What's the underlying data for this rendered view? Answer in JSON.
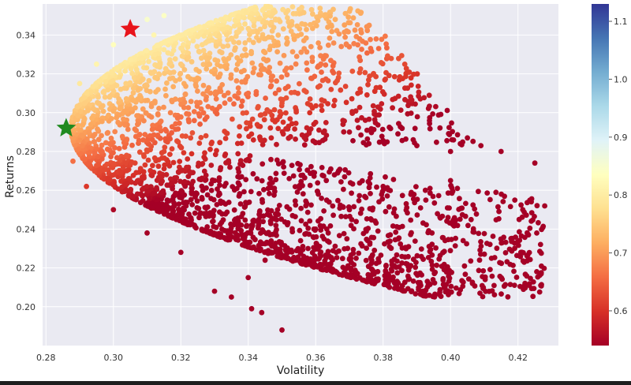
{
  "chart_data": {
    "type": "scatter",
    "title": "",
    "xlabel": "Volatility",
    "ylabel": "Returns",
    "xlim": [
      0.279,
      0.432
    ],
    "ylim": [
      0.18,
      0.356
    ],
    "x_ticks": [
      0.28,
      0.3,
      0.32,
      0.34,
      0.36,
      0.38,
      0.4,
      0.42
    ],
    "x_tick_labels": [
      "0.28",
      "0.30",
      "0.32",
      "0.34",
      "0.36",
      "0.38",
      "0.40",
      "0.42"
    ],
    "y_ticks": [
      0.2,
      0.22,
      0.24,
      0.26,
      0.28,
      0.3,
      0.32,
      0.34
    ],
    "y_tick_labels": [
      "0.20",
      "0.22",
      "0.24",
      "0.26",
      "0.28",
      "0.30",
      "0.32",
      "0.34"
    ],
    "grid": true,
    "background_color": "#eaeaf2",
    "colormap": "RdYlBu",
    "colorbar": {
      "range": [
        0.54,
        1.13
      ],
      "ticks": [
        0.6,
        0.7,
        0.8,
        0.9,
        1.0,
        1.1
      ],
      "tick_labels": [
        "0.6",
        "0.7",
        "0.8",
        "0.9",
        "1.0",
        "1.1"
      ],
      "colors": [
        "#a50026",
        "#d73027",
        "#f46d43",
        "#fdae61",
        "#fee090",
        "#ffffbf",
        "#e0f3f8",
        "#abd9e9",
        "#74add1",
        "#4575b4",
        "#313695"
      ]
    },
    "series": [
      {
        "marker": "circle",
        "sample_points": [
          [
            0.286,
            0.292
          ],
          [
            0.29,
            0.315
          ],
          [
            0.295,
            0.325
          ],
          [
            0.3,
            0.335
          ],
          [
            0.305,
            0.345
          ],
          [
            0.31,
            0.348
          ],
          [
            0.315,
            0.35
          ],
          [
            0.312,
            0.34
          ],
          [
            0.32,
            0.325
          ],
          [
            0.33,
            0.32
          ],
          [
            0.34,
            0.31
          ],
          [
            0.35,
            0.305
          ],
          [
            0.36,
            0.295
          ],
          [
            0.37,
            0.29
          ],
          [
            0.38,
            0.285
          ],
          [
            0.39,
            0.283
          ],
          [
            0.4,
            0.28
          ],
          [
            0.405,
            0.287
          ],
          [
            0.409,
            0.283
          ],
          [
            0.415,
            0.28
          ],
          [
            0.425,
            0.274
          ],
          [
            0.4,
            0.265
          ],
          [
            0.38,
            0.262
          ],
          [
            0.37,
            0.25
          ],
          [
            0.36,
            0.24
          ],
          [
            0.35,
            0.232
          ],
          [
            0.345,
            0.224
          ],
          [
            0.34,
            0.215
          ],
          [
            0.335,
            0.205
          ],
          [
            0.33,
            0.208
          ],
          [
            0.341,
            0.199
          ],
          [
            0.344,
            0.197
          ],
          [
            0.35,
            0.188
          ],
          [
            0.32,
            0.228
          ],
          [
            0.31,
            0.238
          ],
          [
            0.3,
            0.25
          ],
          [
            0.292,
            0.262
          ],
          [
            0.288,
            0.275
          ],
          [
            0.33,
            0.265
          ],
          [
            0.31,
            0.28
          ]
        ]
      },
      {
        "name": "",
        "marker": "star",
        "color": "#e8141b",
        "points": [
          [
            0.305,
            0.343
          ]
        ]
      },
      {
        "name": "",
        "marker": "star",
        "color": "#208a20",
        "points": [
          [
            0.286,
            0.292
          ]
        ]
      }
    ]
  }
}
